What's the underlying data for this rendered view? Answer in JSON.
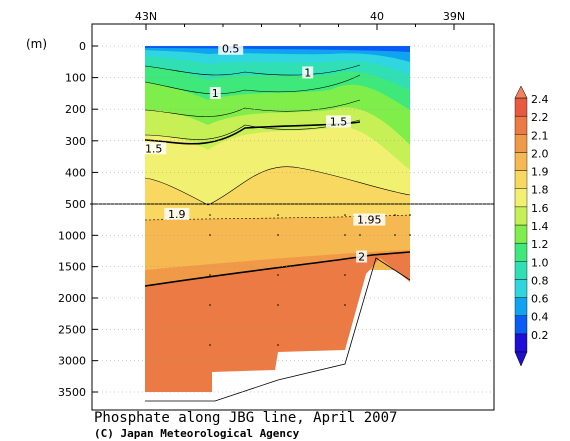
{
  "chart_data": {
    "type": "heatmap",
    "title": "Phosphate along JBG line, April 2007",
    "credit": "(C) Japan Meteorological Agency",
    "y_unit": "(m)",
    "x_ticks": [
      {
        "lat": 43,
        "label": "43N"
      },
      {
        "lat": 40,
        "label": "40"
      },
      {
        "lat": 39,
        "label": "39N"
      }
    ],
    "y_ticks_upper": [
      {
        "depth": 0,
        "label": "0"
      },
      {
        "depth": 100,
        "label": "100"
      },
      {
        "depth": 200,
        "label": "200"
      },
      {
        "depth": 300,
        "label": "300"
      },
      {
        "depth": 400,
        "label": "400"
      },
      {
        "depth": 500,
        "label": "500"
      }
    ],
    "y_ticks_lower": [
      {
        "depth": 1000,
        "label": "1000"
      },
      {
        "depth": 1500,
        "label": "1500"
      },
      {
        "depth": 2000,
        "label": "2000"
      },
      {
        "depth": 2500,
        "label": "2500"
      },
      {
        "depth": 3000,
        "label": "3000"
      },
      {
        "depth": 3500,
        "label": "3500"
      }
    ],
    "colorbar": [
      {
        "label": "0.2",
        "color": "#1f0fd6"
      },
      {
        "label": "0.4",
        "color": "#0b5cf5"
      },
      {
        "label": "0.6",
        "color": "#10a4f0"
      },
      {
        "label": "0.8",
        "color": "#2fd6e0"
      },
      {
        "label": "1.0",
        "color": "#30e0b4"
      },
      {
        "label": "1.2",
        "color": "#3ee87a"
      },
      {
        "label": "1.4",
        "color": "#80ee4a"
      },
      {
        "label": "1.6",
        "color": "#c6f056"
      },
      {
        "label": "1.8",
        "color": "#f2f070"
      },
      {
        "label": "1.9",
        "color": "#f8d860"
      },
      {
        "label": "2.0",
        "color": "#f6b850"
      },
      {
        "label": "2.1",
        "color": "#f09a48"
      },
      {
        "label": "2.2",
        "color": "#ec7a44"
      },
      {
        "label": "2.4",
        "color": "#e85a40"
      }
    ],
    "contour_labels": [
      {
        "text": "0.5",
        "lat": 41.9,
        "depth": 15
      },
      {
        "text": "1",
        "lat": 42.1,
        "depth": 155
      },
      {
        "text": "1",
        "lat": 40.9,
        "depth": 90
      },
      {
        "text": "1.5",
        "lat": 42.9,
        "depth": 330
      },
      {
        "text": "1.5",
        "lat": 40.5,
        "depth": 245
      },
      {
        "text": "1.9",
        "lat": 42.6,
        "depth": 690
      },
      {
        "text": "1.95",
        "lat": 40.1,
        "depth": 780
      },
      {
        "text": "2",
        "lat": 40.2,
        "depth": 1370
      }
    ]
  }
}
